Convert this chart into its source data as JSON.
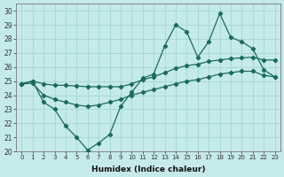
{
  "xlabel": "Humidex (Indice chaleur)",
  "bg_color": "#c5eaea",
  "grid_color": "#a8d8d8",
  "line_color": "#1a6b5a",
  "xlim": [
    -0.5,
    23.5
  ],
  "ylim": [
    20,
    30.5
  ],
  "xticks": [
    0,
    1,
    2,
    3,
    4,
    5,
    6,
    7,
    8,
    9,
    10,
    11,
    12,
    13,
    14,
    15,
    16,
    17,
    18,
    19,
    20,
    21,
    22,
    23
  ],
  "yticks": [
    20,
    21,
    22,
    23,
    24,
    25,
    26,
    27,
    28,
    29,
    30
  ],
  "main_y": [
    24.8,
    25.0,
    23.5,
    23.0,
    21.8,
    21.0,
    20.1,
    20.6,
    21.2,
    23.2,
    24.2,
    25.2,
    25.5,
    27.5,
    29.0,
    28.5,
    26.7,
    27.8,
    29.8,
    28.1,
    27.8,
    27.3,
    25.8,
    25.3
  ],
  "upper_y": [
    24.8,
    25.0,
    24.8,
    24.7,
    24.7,
    24.65,
    24.6,
    24.6,
    24.6,
    24.6,
    24.8,
    25.1,
    25.3,
    25.6,
    25.9,
    26.1,
    26.2,
    26.4,
    26.5,
    26.6,
    26.65,
    26.7,
    26.5,
    26.5
  ],
  "lower_y": [
    24.8,
    24.85,
    24.0,
    23.7,
    23.5,
    23.3,
    23.2,
    23.3,
    23.5,
    23.7,
    24.0,
    24.2,
    24.4,
    24.6,
    24.8,
    25.0,
    25.1,
    25.3,
    25.5,
    25.6,
    25.7,
    25.7,
    25.4,
    25.3
  ]
}
